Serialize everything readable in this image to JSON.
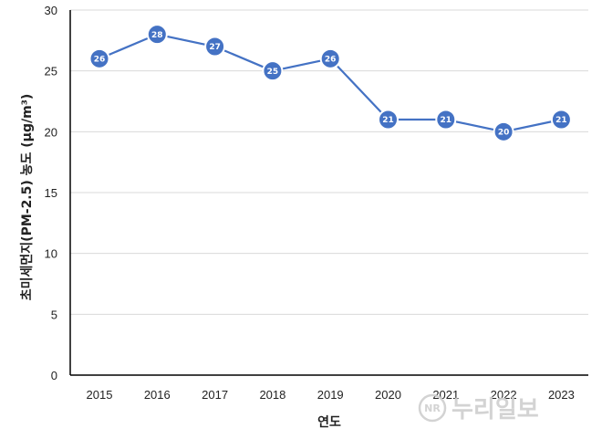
{
  "chart_data": {
    "type": "line",
    "categories": [
      "2015",
      "2016",
      "2017",
      "2018",
      "2019",
      "2020",
      "2021",
      "2022",
      "2023"
    ],
    "series": [
      {
        "values": [
          26,
          28,
          27,
          25,
          26,
          21,
          21,
          20,
          21
        ]
      }
    ],
    "xlabel": "연도",
    "ylabel": "초미세먼지(PM-2.5) 농도 (μg/m³)",
    "ylim": [
      0,
      30
    ],
    "yticks": [
      "0",
      "5",
      "10",
      "15",
      "20",
      "25",
      "30"
    ],
    "grid": true,
    "data_labels": true,
    "legend": "none",
    "colors": {
      "line": "#4472c4",
      "marker": "#4472c4",
      "marker_stroke": "#ffffff",
      "grid": "#d9d9d9",
      "axis": "#000000"
    }
  },
  "watermark": {
    "badge": "NR",
    "text": "누리일보"
  }
}
